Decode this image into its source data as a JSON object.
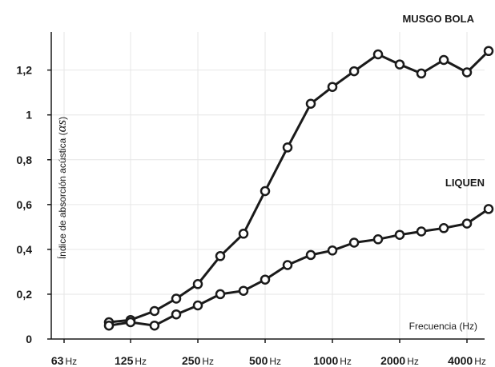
{
  "chart_data": {
    "type": "line",
    "xlabel": "Frecuencia (Hz)",
    "ylabel": "Índice de absorción acústica (",
    "ylabel_symbol": "αs",
    "ylabel_close": ")",
    "x_scale": "log",
    "x_ticks": [
      {
        "value": 63,
        "num": "63",
        "unit": "Hz"
      },
      {
        "value": 125,
        "num": "125",
        "unit": "Hz"
      },
      {
        "value": 250,
        "num": "250",
        "unit": "Hz"
      },
      {
        "value": 500,
        "num": "500",
        "unit": "Hz"
      },
      {
        "value": 1000,
        "num": "1000",
        "unit": "Hz"
      },
      {
        "value": 2000,
        "num": "2000",
        "unit": "Hz"
      },
      {
        "value": 4000,
        "num": "4000",
        "unit": "Hz"
      }
    ],
    "y_ticks": [
      {
        "value": 0,
        "label": "0"
      },
      {
        "value": 0.2,
        "label": "0,2"
      },
      {
        "value": 0.4,
        "label": "0,4"
      },
      {
        "value": 0.6,
        "label": "0,6"
      },
      {
        "value": 0.8,
        "label": "0,8"
      },
      {
        "value": 1,
        "label": "1"
      },
      {
        "value": 1.2,
        "label": "1,2"
      }
    ],
    "ylim": [
      0,
      1.37
    ],
    "xlim": [
      63,
      5000
    ],
    "grid": true,
    "series": [
      {
        "name": "MUSGO BOLA",
        "color": "#1a1a1a",
        "x": [
          100,
          125,
          160,
          200,
          250,
          315,
          400,
          500,
          630,
          800,
          1000,
          1250,
          1600,
          2000,
          2500,
          3150,
          4000,
          5000
        ],
        "y": [
          0.075,
          0.085,
          0.125,
          0.18,
          0.245,
          0.37,
          0.47,
          0.66,
          0.855,
          1.05,
          1.125,
          1.195,
          1.27,
          1.225,
          1.185,
          1.245,
          1.19,
          1.285
        ]
      },
      {
        "name": "LIQUEN",
        "color": "#1a1a1a",
        "x": [
          100,
          125,
          160,
          200,
          250,
          315,
          400,
          500,
          630,
          800,
          1000,
          1250,
          1600,
          2000,
          2500,
          3150,
          4000,
          5000
        ],
        "y": [
          0.06,
          0.075,
          0.06,
          0.11,
          0.15,
          0.2,
          0.215,
          0.265,
          0.33,
          0.375,
          0.395,
          0.43,
          0.445,
          0.465,
          0.48,
          0.495,
          0.515,
          0.58
        ]
      }
    ]
  }
}
